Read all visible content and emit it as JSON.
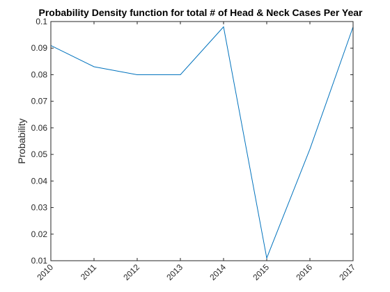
{
  "chart_data": {
    "type": "line",
    "title": "Probability Density function for total # of Head & Neck Cases Per Year",
    "xlabel": "",
    "ylabel": "Probability",
    "x": [
      2010,
      2011,
      2012,
      2013,
      2014,
      2015,
      2016,
      2017
    ],
    "series": [
      {
        "values": [
          0.091,
          0.083,
          0.08,
          0.08,
          0.098,
          0.011,
          0.052,
          0.098
        ],
        "color": "#0072bd"
      }
    ],
    "xlim": [
      2010,
      2017
    ],
    "ylim": [
      0.01,
      0.1
    ],
    "xticks": [
      "2010",
      "2011",
      "2012",
      "2013",
      "2014",
      "2015",
      "2016",
      "2017"
    ],
    "yticks": [
      "0.01",
      "0.02",
      "0.03",
      "0.04",
      "0.05",
      "0.06",
      "0.07",
      "0.08",
      "0.09",
      "0.1"
    ],
    "grid": false,
    "legend": "none"
  }
}
